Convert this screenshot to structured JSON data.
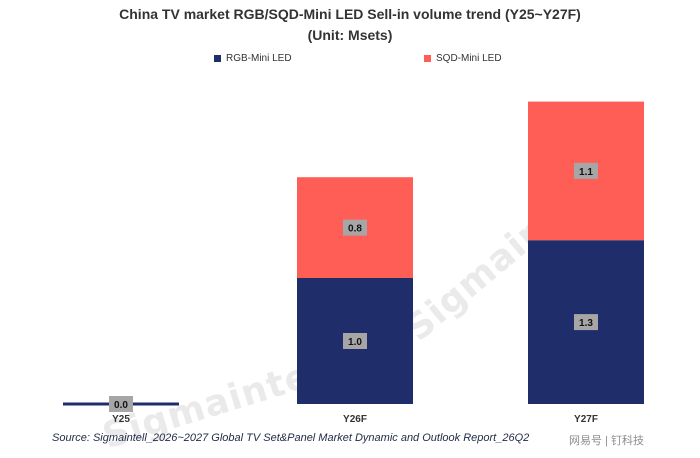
{
  "chart_data": {
    "type": "bar",
    "stacked": true,
    "title": "China TV market RGB/SQD-Mini LED Sell-in volume trend  (Y25~Y27F)",
    "subtitle": "(Unit: Msets)",
    "categories": [
      "Y25",
      "Y26F",
      "Y27F"
    ],
    "series": [
      {
        "name": "RGB-Mini LED",
        "color": "#1f2d6b",
        "values": [
          0.0,
          1.0,
          1.3
        ]
      },
      {
        "name": "SQD-Mini LED",
        "color": "#ff5e57",
        "values": [
          0.0,
          0.8,
          1.1
        ]
      }
    ],
    "data_labels": [
      [
        "0.0",
        "1.0",
        "1.3"
      ],
      [
        "",
        "0.8",
        "1.1"
      ]
    ],
    "ylim": [
      0,
      2.4
    ],
    "grid": false,
    "legend_position": "top"
  },
  "source": "Source: Sigmaintell_2026~2027 Global TV Set&Panel Market Dynamic and Outlook Report_26Q2",
  "watermark": "Sigmaintell",
  "credit": "网易号 | 钉科技"
}
